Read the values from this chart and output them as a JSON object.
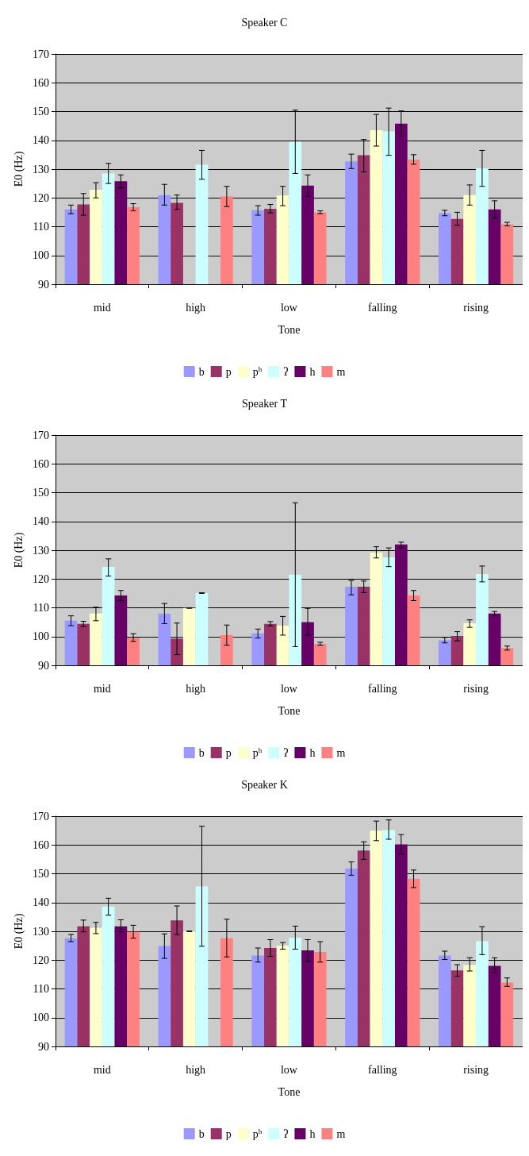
{
  "chart_data": [
    {
      "type": "bar",
      "title": "Speaker C",
      "xlabel": "Tone",
      "ylabel": "E0 (Hz)",
      "categories": [
        "mid",
        "high",
        "low",
        "falling",
        "rising"
      ],
      "ylim": [
        90,
        170
      ],
      "yticks": [
        90,
        100,
        110,
        120,
        130,
        140,
        150,
        160,
        170
      ],
      "grid": "y",
      "legend": "bottom",
      "series": [
        {
          "name": "b",
          "color": "#9999ff",
          "values": [
            116,
            121,
            115.7,
            132.7,
            114.7
          ],
          "errors": [
            [
              114.5,
              117.5
            ],
            [
              117.5,
              124.7
            ],
            [
              114,
              117.3
            ],
            [
              130.2,
              135.2
            ],
            [
              113.8,
              115.7
            ]
          ]
        },
        {
          "name": "p",
          "color": "#993366",
          "values": [
            117.7,
            118.3,
            116.2,
            134.8,
            112.7
          ],
          "errors": [
            [
              114,
              121.5
            ],
            [
              116,
              121
            ],
            [
              114.8,
              117.7
            ],
            [
              129,
              140.3
            ],
            [
              110.5,
              115
            ]
          ]
        },
        {
          "name": "p$^{h}$",
          "color": "#ffffcc",
          "values": [
            122.8,
            null,
            120.8,
            143.5,
            121
          ],
          "errors": [
            [
              120,
              125.3
            ],
            null,
            [
              117.3,
              124
            ],
            [
              138,
              149
            ],
            [
              117.5,
              124.5
            ]
          ]
        },
        {
          "name": "ʔ",
          "color": "#ccffff",
          "values": [
            128.5,
            131.5,
            139.5,
            143.2,
            130.3
          ],
          "errors": [
            [
              125,
              132
            ],
            [
              126.5,
              136.5
            ],
            [
              128.5,
              150.5
            ],
            [
              134.8,
              151.2
            ],
            [
              124,
              136.5
            ]
          ]
        },
        {
          "name": "h",
          "color": "#660066",
          "values": [
            125.8,
            null,
            124.3,
            145.8,
            116
          ],
          "errors": [
            [
              123.5,
              128
            ],
            null,
            [
              120.5,
              128
            ],
            [
              141.5,
              150.2
            ],
            [
              113,
              119
            ]
          ]
        },
        {
          "name": "m",
          "color": "#ff8080",
          "values": [
            116.8,
            120.5,
            115,
            133.3,
            110.8
          ],
          "errors": [
            [
              115.5,
              118
            ],
            [
              117,
              124
            ],
            [
              114.5,
              115.5
            ],
            [
              131.7,
              135
            ],
            [
              110.3,
              111.5
            ]
          ]
        }
      ]
    },
    {
      "type": "bar",
      "title": "Speaker T",
      "xlabel": "Tone",
      "ylabel": "E0 (Hz)",
      "categories": [
        "mid",
        "high",
        "low",
        "falling",
        "rising"
      ],
      "ylim": [
        90,
        170
      ],
      "yticks": [
        90,
        100,
        110,
        120,
        130,
        140,
        150,
        160,
        170
      ],
      "grid": "y",
      "legend": "bottom",
      "series": [
        {
          "name": "b",
          "color": "#9999ff",
          "values": [
            105.5,
            108,
            101.1,
            117.3,
            98.7
          ],
          "errors": [
            [
              103.8,
              107.2
            ],
            [
              104.5,
              111.5
            ],
            [
              99.5,
              102.6
            ],
            [
              114.5,
              119.5
            ],
            [
              97.8,
              99.7
            ]
          ]
        },
        {
          "name": "p",
          "color": "#993366",
          "values": [
            104.4,
            99.3,
            104.4,
            117.3,
            100.2
          ],
          "errors": [
            [
              103.5,
              105.3
            ],
            [
              93.7,
              104.7
            ],
            [
              103.7,
              105.2
            ],
            [
              115.3,
              119.3
            ],
            [
              98.5,
              101.7
            ]
          ]
        },
        {
          "name": "p$^{h}$",
          "color": "#ffffcc",
          "values": [
            108,
            109.9,
            103.8,
            129.2,
            104.6
          ],
          "errors": [
            [
              105.5,
              110.2
            ],
            [
              109.8,
              110
            ],
            [
              100.5,
              107
            ],
            [
              127.3,
              131.2
            ],
            [
              103.2,
              105.8
            ]
          ]
        },
        {
          "name": "ʔ",
          "color": "#ccffff",
          "values": [
            124.2,
            115.1,
            121.5,
            127.5,
            121.7
          ],
          "errors": [
            [
              121,
              127
            ],
            [
              115,
              115.2
            ],
            [
              96.5,
              146.5
            ],
            [
              124.3,
              130.8
            ],
            [
              119,
              124.5
            ]
          ]
        },
        {
          "name": "h",
          "color": "#660066",
          "values": [
            114.3,
            null,
            105,
            132,
            108
          ],
          "errors": [
            [
              112.5,
              116
            ],
            null,
            [
              100.5,
              109.8
            ],
            [
              130.8,
              132.8
            ],
            [
              107.2,
              108.7
            ]
          ]
        },
        {
          "name": "m",
          "color": "#ff8080",
          "values": [
            99.6,
            100.5,
            97.5,
            114.3,
            96
          ],
          "errors": [
            [
              98.3,
              101
            ],
            [
              97,
              104
            ],
            [
              97,
              98
            ],
            [
              112.5,
              116
            ],
            [
              95.3,
              96.7
            ]
          ]
        }
      ]
    },
    {
      "type": "bar",
      "title": "Speaker K",
      "xlabel": "Tone",
      "ylabel": "E0 (Hz)",
      "categories": [
        "mid",
        "high",
        "low",
        "falling",
        "rising"
      ],
      "ylim": [
        90,
        170
      ],
      "yticks": [
        90,
        100,
        110,
        120,
        130,
        140,
        150,
        160,
        170
      ],
      "grid": "y",
      "legend": "bottom",
      "series": [
        {
          "name": "b",
          "color": "#9999ff",
          "values": [
            127.6,
            124.9,
            121.6,
            151.8,
            121.6
          ],
          "errors": [
            [
              126.4,
              128.9
            ],
            [
              120.6,
              129.1
            ],
            [
              119.3,
              124.2
            ],
            [
              149.5,
              154.1
            ],
            [
              120.2,
              123.1
            ]
          ]
        },
        {
          "name": "p",
          "color": "#993366",
          "values": [
            131.7,
            133.8,
            124.2,
            158.1,
            116.4
          ],
          "errors": [
            [
              129.8,
              133.9
            ],
            [
              128.9,
              138.8
            ],
            [
              121.3,
              127.1
            ],
            [
              155,
              161.1
            ],
            [
              114.4,
              118.4
            ]
          ]
        },
        {
          "name": "p$^{h}$",
          "color": "#ffffcc",
          "values": [
            131.2,
            130,
            125,
            165,
            118.3
          ],
          "errors": [
            [
              129.2,
              133.1
            ],
            [
              129.9,
              130.1
            ],
            [
              123.8,
              126.1
            ],
            [
              161.5,
              168.3
            ],
            [
              116.2,
              120.8
            ]
          ]
        },
        {
          "name": "ʔ",
          "color": "#ccffff",
          "values": [
            138.6,
            145.6,
            127.8,
            165.2,
            126.6
          ],
          "errors": [
            [
              135.6,
              141.5
            ],
            [
              124.8,
              166.5
            ],
            [
              123.8,
              131.8
            ],
            [
              162,
              168.7
            ],
            [
              121.9,
              131.6
            ]
          ]
        },
        {
          "name": "h",
          "color": "#660066",
          "values": [
            131.7,
            null,
            123.4,
            160.2,
            118
          ],
          "errors": [
            [
              129.8,
              134
            ],
            null,
            [
              119.5,
              127.1
            ],
            [
              156.8,
              163.6
            ],
            [
              115.5,
              120.8
            ]
          ]
        },
        {
          "name": "m",
          "color": "#ff8080",
          "values": [
            129.8,
            127.6,
            122.8,
            148.3,
            112.2
          ],
          "errors": [
            [
              127.6,
              132.1
            ],
            [
              121.1,
              134.2
            ],
            [
              119.3,
              126.4
            ],
            [
              145.2,
              151.3
            ],
            [
              110.9,
              113.8
            ]
          ]
        }
      ]
    }
  ]
}
